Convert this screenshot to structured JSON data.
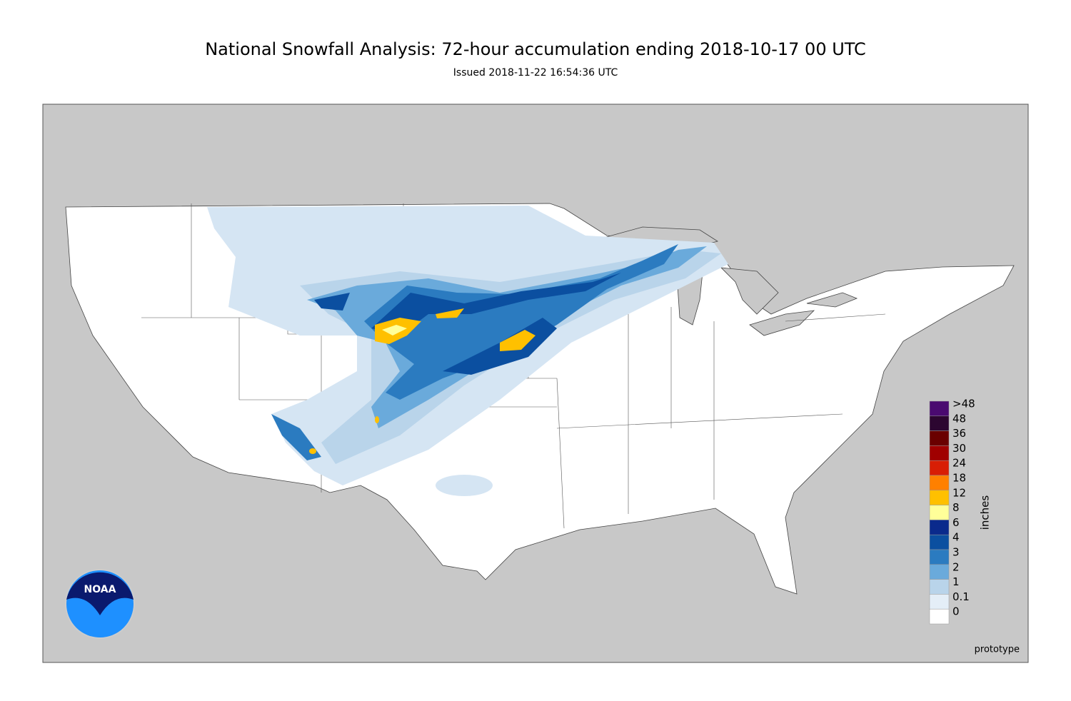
{
  "header": {
    "title": "National Snowfall Analysis: 72-hour accumulation ending 2018-10-17 00 UTC",
    "subtitle": "Issued 2018-11-22 16:54:36 UTC"
  },
  "legend": {
    "unit": "inches",
    "items": [
      {
        "label": ">48",
        "color": "#4a0a70"
      },
      {
        "label": "48",
        "color": "#2c0630"
      },
      {
        "label": "36",
        "color": "#6a0000"
      },
      {
        "label": "30",
        "color": "#a00000"
      },
      {
        "label": "24",
        "color": "#d81e05"
      },
      {
        "label": "18",
        "color": "#ff8000"
      },
      {
        "label": "12",
        "color": "#ffc000"
      },
      {
        "label": "8",
        "color": "#ffff99"
      },
      {
        "label": "6",
        "color": "#0a2a8c"
      },
      {
        "label": "4",
        "color": "#0b4fa0"
      },
      {
        "label": "3",
        "color": "#2b7bc0"
      },
      {
        "label": "2",
        "color": "#6aaadb"
      },
      {
        "label": "1",
        "color": "#b9d4ea"
      },
      {
        "label": "0.1",
        "color": "#e4eef7"
      },
      {
        "label": "0",
        "color": "#ffffff"
      }
    ]
  },
  "note": "prototype",
  "logo": "NOAA"
}
